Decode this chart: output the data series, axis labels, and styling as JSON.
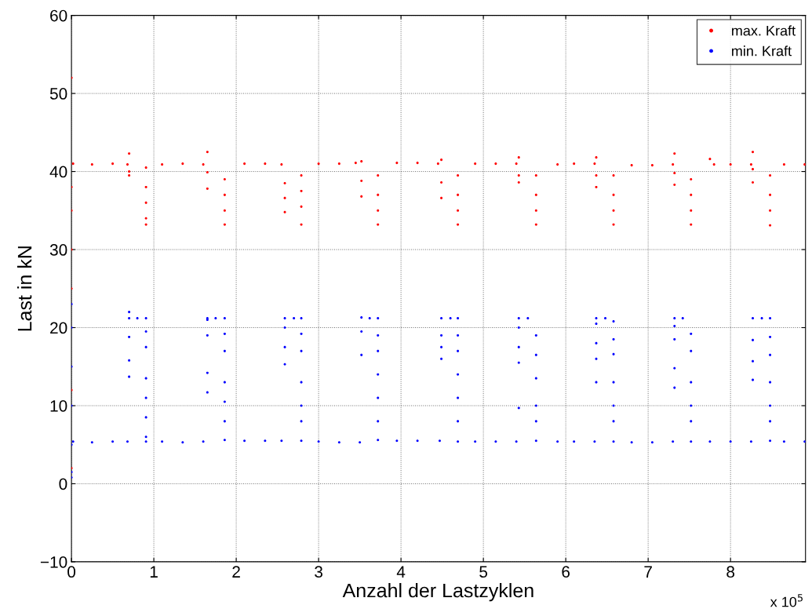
{
  "chart_data": {
    "type": "scatter",
    "xlabel": "Anzahl der Lastzyklen",
    "ylabel": "Last in kN",
    "xlim": [
      0,
      8.91
    ],
    "xticks": [
      0,
      1,
      2,
      3,
      4,
      5,
      6,
      7,
      8
    ],
    "ylim": [
      -10,
      60
    ],
    "yticks": [
      {
        "value": -10,
        "label": "−10"
      },
      0,
      10,
      20,
      30,
      40,
      50,
      60
    ],
    "grid": true,
    "legend": "top right",
    "annotations": [
      "x 10$^{5}$"
    ],
    "series": [
      {
        "name": "max. Kraft",
        "color": "#ff0000",
        "x": [
          0,
          0,
          0,
          0,
          0,
          0,
          0,
          0.02,
          0.25,
          0.5,
          0.68,
          0.7,
          0.7,
          0.7,
          0.905,
          0.905,
          0.905,
          0.905,
          0.905,
          1.1,
          1.35,
          1.6,
          1.65,
          1.65,
          1.65,
          1.86,
          1.86,
          1.86,
          1.86,
          2.1,
          2.35,
          2.55,
          2.59,
          2.59,
          2.59,
          2.79,
          2.79,
          2.79,
          2.79,
          3.0,
          3.25,
          3.45,
          3.52,
          3.52,
          3.52,
          3.72,
          3.72,
          3.72,
          3.72,
          3.95,
          4.2,
          4.45,
          4.49,
          4.49,
          4.49,
          4.69,
          4.69,
          4.69,
          4.69,
          4.9,
          5.15,
          5.4,
          5.43,
          5.43,
          5.43,
          5.64,
          5.64,
          5.64,
          5.64,
          5.9,
          6.1,
          6.35,
          6.37,
          6.37,
          6.37,
          6.58,
          6.58,
          6.58,
          6.58,
          6.8,
          7.05,
          7.3,
          7.32,
          7.32,
          7.32,
          7.52,
          7.52,
          7.52,
          7.52,
          7.75,
          7.8,
          8.0,
          8.25,
          8.27,
          8.27,
          8.27,
          8.48,
          8.48,
          8.48,
          8.48,
          8.65,
          8.9
        ],
        "values": [
          2,
          12,
          25,
          30,
          35,
          38,
          52,
          41.0,
          40.9,
          41.0,
          40.9,
          42.3,
          39.5,
          40.0,
          40.5,
          38,
          36,
          34,
          33.2,
          40.9,
          41.0,
          40.9,
          42.5,
          39.9,
          37.8,
          39,
          37,
          35,
          33.2,
          41.0,
          41.0,
          40.9,
          38.5,
          36.6,
          34.8,
          39.5,
          37.5,
          35.5,
          33.2,
          41.0,
          41.0,
          41.1,
          41.3,
          38.8,
          36.8,
          39.5,
          37,
          35,
          33.2,
          41.1,
          41.1,
          41.0,
          41.5,
          38.6,
          36.6,
          39.5,
          37,
          35,
          33.2,
          41.0,
          41.0,
          41.0,
          41.8,
          39.5,
          38.6,
          39.5,
          37,
          35,
          33.2,
          40.9,
          41.0,
          41.0,
          41.8,
          39.5,
          38.0,
          39.5,
          37,
          35,
          33.2,
          40.8,
          40.8,
          40.9,
          42.3,
          39.8,
          38.3,
          39,
          37,
          35,
          33.2,
          41.6,
          40.9,
          40.9,
          40.9,
          42.5,
          40.3,
          38.6,
          39.5,
          37,
          35,
          33.1,
          40.9,
          40.9
        ]
      },
      {
        "name": "min. Kraft",
        "color": "#0000ff",
        "x": [
          0,
          0,
          0,
          0,
          0,
          0,
          0,
          0.02,
          0.25,
          0.5,
          0.68,
          0.7,
          0.7,
          0.7,
          0.7,
          0.7,
          0.8,
          0.905,
          0.905,
          0.905,
          0.905,
          0.905,
          0.905,
          0.905,
          0.905,
          1.1,
          1.35,
          1.6,
          1.65,
          1.65,
          1.65,
          1.65,
          1.65,
          1.75,
          1.86,
          1.86,
          1.86,
          1.86,
          1.86,
          1.86,
          1.86,
          2.1,
          2.35,
          2.55,
          2.59,
          2.59,
          2.59,
          2.59,
          2.7,
          2.79,
          2.79,
          2.79,
          2.79,
          2.79,
          2.79,
          2.79,
          3.0,
          3.25,
          3.5,
          3.52,
          3.52,
          3.52,
          3.62,
          3.72,
          3.72,
          3.72,
          3.72,
          3.72,
          3.72,
          3.72,
          3.95,
          4.2,
          4.47,
          4.49,
          4.49,
          4.49,
          4.49,
          4.6,
          4.69,
          4.69,
          4.69,
          4.69,
          4.69,
          4.69,
          4.69,
          4.9,
          5.15,
          5.4,
          5.43,
          5.43,
          5.43,
          5.43,
          5.43,
          5.54,
          5.64,
          5.64,
          5.64,
          5.64,
          5.64,
          5.64,
          5.9,
          6.1,
          6.35,
          6.37,
          6.37,
          6.37,
          6.37,
          6.37,
          6.48,
          6.58,
          6.58,
          6.58,
          6.58,
          6.58,
          6.58,
          6.58,
          6.8,
          7.05,
          7.3,
          7.32,
          7.32,
          7.32,
          7.32,
          7.32,
          7.42,
          7.52,
          7.52,
          7.52,
          7.52,
          7.52,
          7.52,
          7.75,
          8.0,
          8.25,
          8.27,
          8.27,
          8.27,
          8.27,
          8.38,
          8.48,
          8.48,
          8.48,
          8.48,
          8.48,
          8.48,
          8.48,
          8.65,
          8.9
        ],
        "values": [
          0.8,
          1.5,
          5,
          10,
          15,
          20,
          23,
          5.4,
          5.3,
          5.4,
          5.4,
          13.7,
          15.8,
          18.8,
          22.0,
          21.2,
          21.2,
          21.2,
          19.5,
          17.5,
          13.5,
          11,
          8.5,
          6,
          5.4,
          5.4,
          5.3,
          5.4,
          11.7,
          14.2,
          19,
          21,
          21.2,
          21.2,
          21.2,
          19.2,
          17,
          13,
          10.5,
          8,
          5.6,
          5.5,
          5.5,
          5.5,
          15.3,
          17.5,
          20,
          21.2,
          21.2,
          21.2,
          19.2,
          17.0,
          13,
          10,
          8,
          5.5,
          5.4,
          5.3,
          5.3,
          16.5,
          19.5,
          21.3,
          21.2,
          21.2,
          19,
          17,
          14,
          11,
          8,
          5.6,
          5.5,
          5.5,
          5.5,
          16,
          17.5,
          19,
          21.2,
          21.2,
          21.2,
          19,
          17,
          14,
          11,
          8,
          5.4,
          5.4,
          5.4,
          5.4,
          9.7,
          15.5,
          17.5,
          20,
          21.2,
          21.2,
          19,
          16.5,
          13.5,
          10,
          8,
          5.5,
          5.4,
          5.4,
          5.4,
          13,
          16,
          18,
          20.5,
          21.2,
          21.2,
          20.8,
          18.5,
          16.6,
          13,
          10,
          8,
          5.4,
          5.3,
          5.3,
          5.4,
          12.3,
          14.8,
          18.5,
          20.2,
          21.2,
          21.2,
          19.2,
          17,
          13,
          10,
          8,
          5.4,
          5.4,
          5.4,
          5.4,
          13.3,
          15.7,
          18.4,
          21.2,
          21.2,
          21.2,
          18.8,
          16.5,
          13,
          10,
          8,
          5.5,
          5.4,
          5.4
        ]
      }
    ]
  }
}
